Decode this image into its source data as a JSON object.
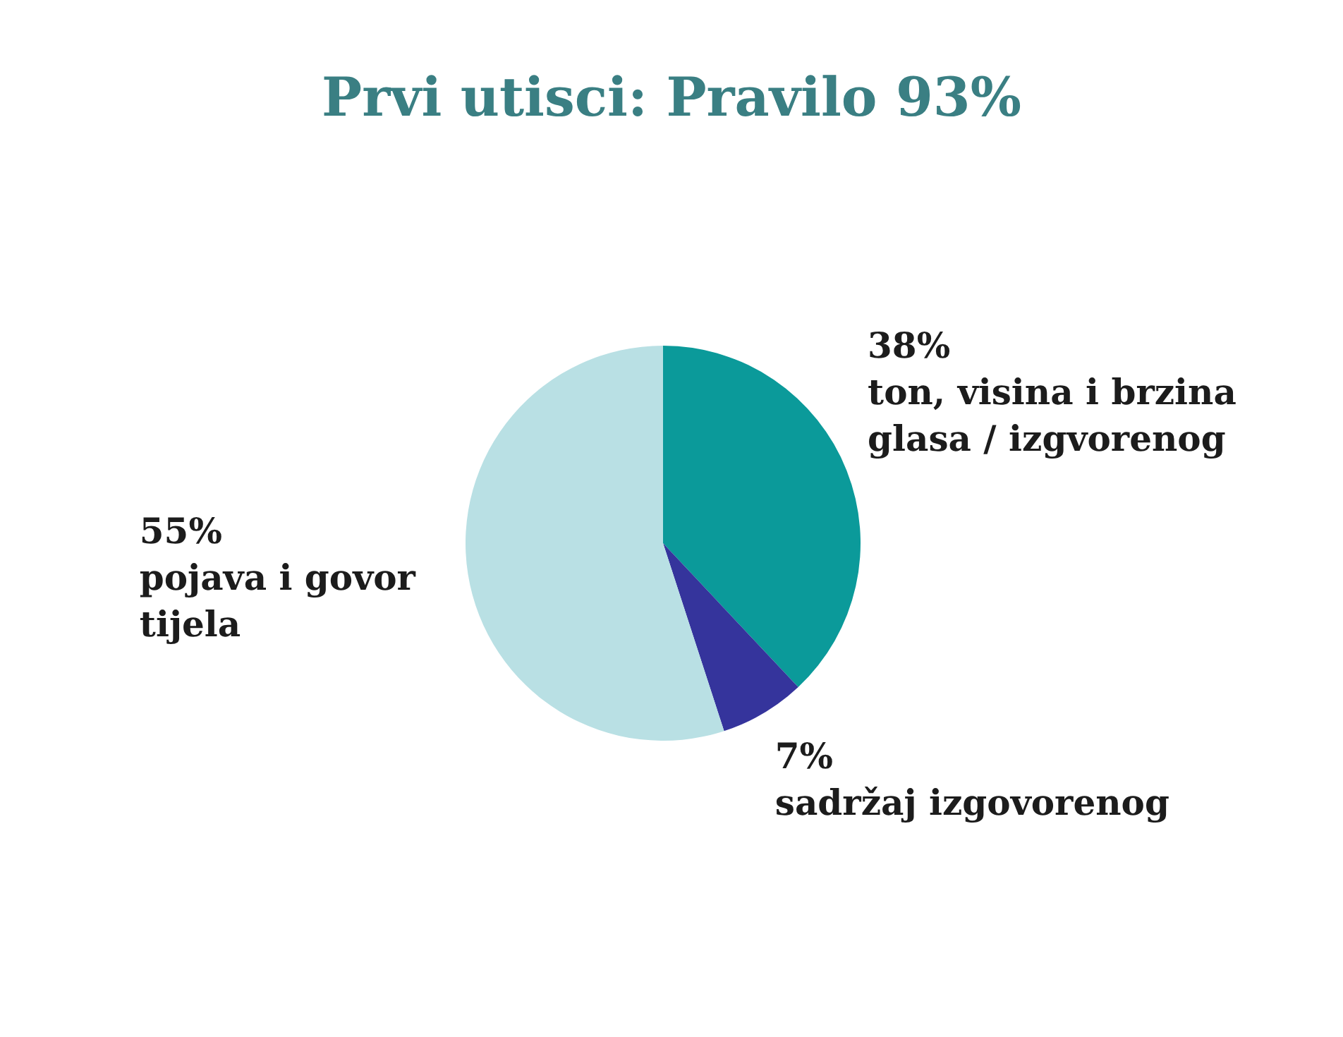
{
  "chart_data": {
    "type": "pie",
    "title": "Prvi utisci: Pravilo 93%",
    "categories": [
      "ton, visina i brzina glasa / izgvorenog",
      "sadržaj izgovorenog",
      "pojava i govor tijela"
    ],
    "values": [
      38,
      7,
      55
    ],
    "colors": [
      "#0b9a9a",
      "#35349c",
      "#b9e0e4"
    ],
    "value_labels": [
      "38%",
      "7%",
      "55%"
    ]
  }
}
